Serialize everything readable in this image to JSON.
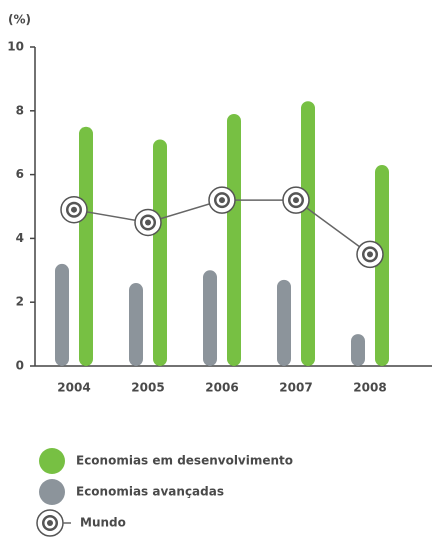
{
  "chart_data": {
    "type": "bar",
    "y_label": "(%)",
    "categories": [
      "2004",
      "2005",
      "2006",
      "2007",
      "2008"
    ],
    "series": [
      {
        "name": "Economias em desenvolvimento",
        "type": "bar",
        "color": "#77c043",
        "values": [
          7.5,
          7.1,
          7.9,
          8.3,
          6.3
        ]
      },
      {
        "name": "Economias avançadas",
        "type": "bar",
        "color": "#8c949b",
        "values": [
          3.2,
          2.6,
          3.0,
          2.7,
          1.0
        ]
      },
      {
        "name": "Mundo",
        "type": "line",
        "color": "#666666",
        "values": [
          4.9,
          4.5,
          5.2,
          5.2,
          3.5
        ]
      }
    ],
    "ylim": [
      0,
      10
    ],
    "yticks": [
      0,
      2,
      4,
      6,
      8,
      10
    ],
    "grid": false
  }
}
